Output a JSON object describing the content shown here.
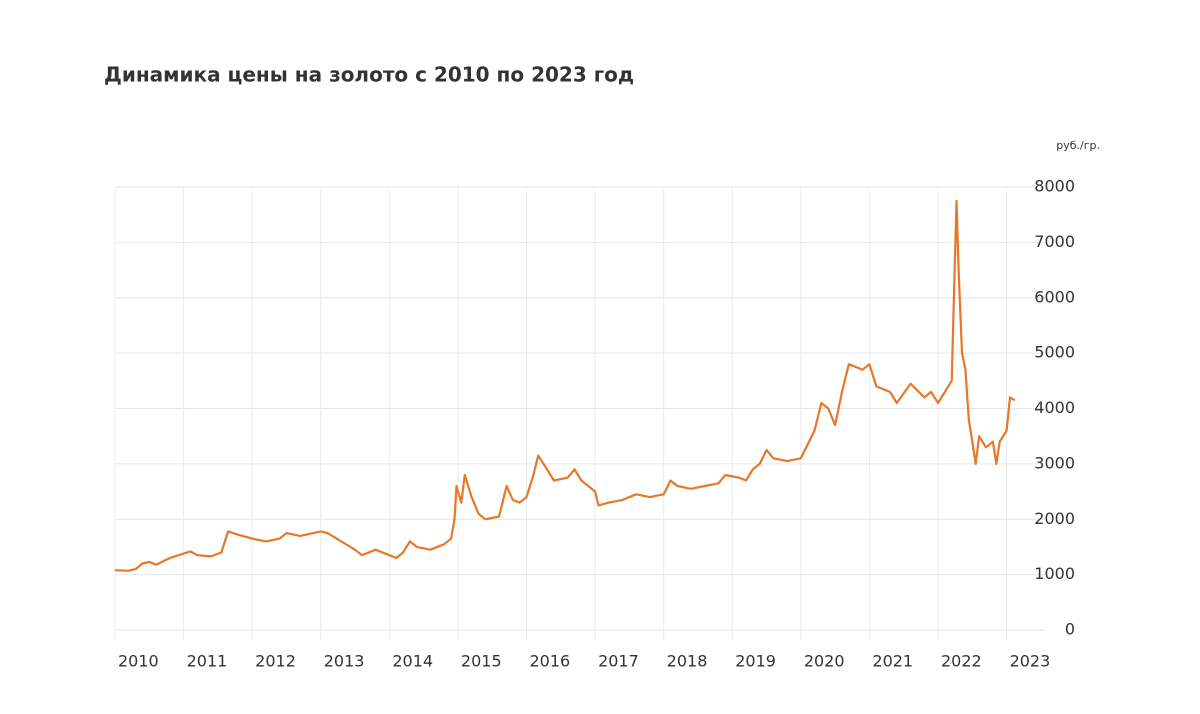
{
  "chart_data": {
    "type": "line",
    "title": "Динамика цены на золото с 2010 по 2023 год",
    "y_label": "руб./гр.",
    "x": [
      2010.0,
      2010.2,
      2010.3,
      2010.4,
      2010.5,
      2010.6,
      2010.8,
      2011.0,
      2011.1,
      2011.2,
      2011.4,
      2011.55,
      2011.65,
      2011.8,
      2012.0,
      2012.2,
      2012.4,
      2012.5,
      2012.7,
      2013.0,
      2013.1,
      2013.3,
      2013.5,
      2013.6,
      2013.8,
      2014.0,
      2014.1,
      2014.2,
      2014.3,
      2014.4,
      2014.6,
      2014.8,
      2014.9,
      2014.95,
      2014.98,
      2015.05,
      2015.1,
      2015.2,
      2015.3,
      2015.4,
      2015.6,
      2015.71,
      2015.8,
      2015.9,
      2016.0,
      2016.1,
      2016.17,
      2016.3,
      2016.4,
      2016.6,
      2016.7,
      2016.8,
      2017.0,
      2017.05,
      2017.2,
      2017.4,
      2017.6,
      2017.8,
      2018.0,
      2018.1,
      2018.2,
      2018.4,
      2018.6,
      2018.8,
      2018.9,
      2019.1,
      2019.2,
      2019.3,
      2019.4,
      2019.5,
      2019.6,
      2019.8,
      2020.0,
      2020.2,
      2020.3,
      2020.4,
      2020.5,
      2020.6,
      2020.7,
      2020.9,
      2021.0,
      2021.1,
      2021.3,
      2021.4,
      2021.6,
      2021.8,
      2021.9,
      2022.0,
      2022.15,
      2022.2,
      2022.27,
      2022.3,
      2022.35,
      2022.4,
      2022.45,
      2022.5,
      2022.55,
      2022.6,
      2022.7,
      2022.8,
      2022.85,
      2022.9,
      2023.0,
      2023.05,
      2023.12
    ],
    "series": [
      {
        "color": "#e8772a",
        "values": [
          1080,
          1070,
          1100,
          1200,
          1230,
          1180,
          1300,
          1380,
          1420,
          1350,
          1330,
          1400,
          1780,
          1720,
          1650,
          1600,
          1650,
          1750,
          1700,
          1780,
          1750,
          1600,
          1450,
          1350,
          1450,
          1350,
          1300,
          1400,
          1600,
          1500,
          1450,
          1550,
          1650,
          2000,
          2600,
          2300,
          2800,
          2400,
          2100,
          2000,
          2050,
          2600,
          2350,
          2300,
          2400,
          2800,
          3150,
          2900,
          2700,
          2750,
          2900,
          2700,
          2500,
          2250,
          2300,
          2350,
          2450,
          2400,
          2450,
          2700,
          2600,
          2550,
          2600,
          2650,
          2800,
          2750,
          2700,
          2900,
          3000,
          3250,
          3100,
          3050,
          3100,
          3600,
          4100,
          4000,
          3700,
          4300,
          4800,
          4700,
          4800,
          4400,
          4300,
          4100,
          4450,
          4200,
          4300,
          4100,
          4400,
          4500,
          7750,
          6500,
          5000,
          4700,
          3800,
          3400,
          3000,
          3500,
          3300,
          3400,
          3000,
          3400,
          3600,
          4200,
          4150
        ]
      }
    ],
    "xlim": [
      2010,
      2023.4
    ],
    "xticks": [
      2010,
      2011,
      2012,
      2013,
      2014,
      2015,
      2016,
      2017,
      2018,
      2019,
      2020,
      2021,
      2022,
      2023
    ],
    "ylim": [
      0,
      8000
    ],
    "yticks": [
      0,
      1000,
      2000,
      3000,
      4000,
      5000,
      6000,
      7000,
      8000
    ],
    "grid": true
  }
}
